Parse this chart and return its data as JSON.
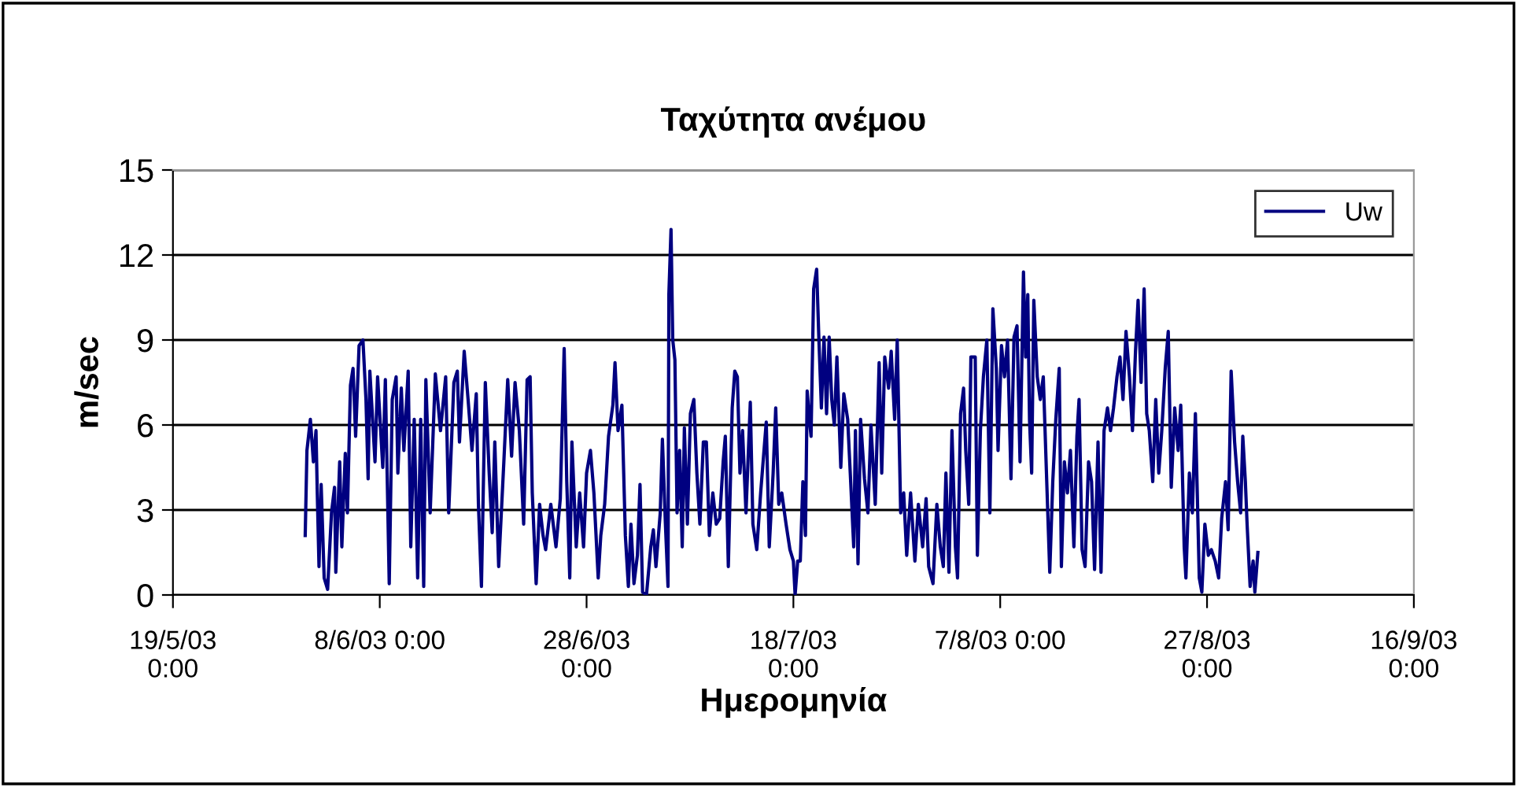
{
  "chart_data": {
    "type": "line",
    "title": "Ταχύτητα ανέμου",
    "xlabel": "Ημερομηνία",
    "ylabel": "m/sec",
    "xlim": [
      "2003-05-19",
      "2003-09-16"
    ],
    "xticks": [
      {
        "value": "2003-05-19",
        "label": "19/5/03\n0:00"
      },
      {
        "value": "2003-06-08",
        "label": "8/6/03 0:00"
      },
      {
        "value": "2003-06-28",
        "label": "28/6/03\n0:00"
      },
      {
        "value": "2003-07-18",
        "label": "18/7/03\n0:00"
      },
      {
        "value": "2003-08-07",
        "label": "7/8/03 0:00"
      },
      {
        "value": "2003-08-27",
        "label": "27/8/03\n0:00"
      },
      {
        "value": "2003-09-16",
        "label": "16/9/03\n0:00"
      }
    ],
    "ylim": [
      0,
      15
    ],
    "yticks": [
      0,
      3,
      6,
      9,
      12,
      15
    ],
    "grid": "y",
    "legend": "top right",
    "marker": "none",
    "line_style": "solid",
    "series": [
      {
        "name": "Uw",
        "color": "#000080",
        "x": [
          "2003-05-31T19:00",
          "2003-05-31T23:00",
          "2003-06-01T07:00",
          "2003-06-01T14:00",
          "2003-06-01T20:00",
          "2003-06-01T23:00",
          "2003-06-02T03:00",
          "2003-06-02T08:00",
          "2003-06-02T15:00",
          "2003-06-02T23:00",
          "2003-06-03T08:00",
          "2003-06-03T15:00",
          "2003-06-03T18:00",
          "2003-06-04T03:00",
          "2003-06-04T08:00",
          "2003-06-04T16:00",
          "2003-06-04T21:00",
          "2003-06-05T04:00",
          "2003-06-05T10:00",
          "2003-06-05T16:00",
          "2003-06-06T00:00",
          "2003-06-06T09:00",
          "2003-06-06T16:00",
          "2003-06-06T21:00",
          "2003-06-07T01:00",
          "2003-06-07T13:00",
          "2003-06-07T19:00",
          "2003-06-08T07:00",
          "2003-06-08T13:00",
          "2003-06-08T22:00",
          "2003-06-09T05:00",
          "2003-06-09T14:00",
          "2003-06-09T18:00",
          "2003-06-10T02:00",
          "2003-06-10T08:00",
          "2003-06-10T18:00",
          "2003-06-11T00:00",
          "2003-06-11T08:00",
          "2003-06-11T16:00",
          "2003-06-11T23:00",
          "2003-06-12T06:00",
          "2003-06-12T11:00",
          "2003-06-12T21:00",
          "2003-06-13T09:00",
          "2003-06-13T21:00",
          "2003-06-14T09:00",
          "2003-06-14T16:00",
          "2003-06-15T04:00",
          "2003-06-15T12:00",
          "2003-06-15T17:00",
          "2003-06-16T04:00",
          "2003-06-16T13:00",
          "2003-06-16T22:00",
          "2003-06-17T08:00",
          "2003-06-17T13:00",
          "2003-06-17T20:00",
          "2003-06-18T05:00",
          "2003-06-18T14:00",
          "2003-06-18T21:00",
          "2003-06-19T03:00",
          "2003-06-19T12:00",
          "2003-06-20T00:00",
          "2003-06-20T09:00",
          "2003-06-20T18:00",
          "2003-06-21T02:00",
          "2003-06-21T12:00",
          "2003-06-21T22:00",
          "2003-06-22T06:00",
          "2003-06-22T13:00",
          "2003-06-22T18:00",
          "2003-06-23T03:00",
          "2003-06-23T11:00",
          "2003-06-23T19:00",
          "2003-06-24T01:00",
          "2003-06-24T13:00",
          "2003-06-25T01:00",
          "2003-06-25T11:00",
          "2003-06-25T20:00",
          "2003-06-26T02:00",
          "2003-06-26T09:00",
          "2003-06-26T14:00",
          "2003-06-27T00:00",
          "2003-06-27T08:00",
          "2003-06-27T17:00",
          "2003-06-28T00:00",
          "2003-06-28T09:00",
          "2003-06-28T17:00",
          "2003-06-29T03:00",
          "2003-06-29T09:00",
          "2003-06-29T18:00",
          "2003-06-30T03:00",
          "2003-06-30T13:00",
          "2003-06-30T18:00",
          "2003-07-01T01:00",
          "2003-07-01T10:00",
          "2003-07-01T18:00",
          "2003-07-02T01:00",
          "2003-07-02T07:00",
          "2003-07-02T14:00",
          "2003-07-02T22:00",
          "2003-07-03T04:00",
          "2003-07-03T10:00",
          "2003-07-03T19:00",
          "2003-07-04T05:00",
          "2003-07-04T11:00",
          "2003-07-04T17:00",
          "2003-07-05T03:00",
          "2003-07-05T08:00",
          "2003-07-05T15:00",
          "2003-07-05T21:00",
          "2003-07-05T23:00",
          "2003-07-06T04:00",
          "2003-07-06T08:00",
          "2003-07-06T13:00",
          "2003-07-06T18:00",
          "2003-07-07T00:00",
          "2003-07-07T06:00",
          "2003-07-07T11:00",
          "2003-07-07T18:00",
          "2003-07-08T01:00",
          "2003-07-08T09:00",
          "2003-07-08T16:00",
          "2003-07-08T23:00",
          "2003-07-09T07:00",
          "2003-07-09T14:00",
          "2003-07-09T21:00",
          "2003-07-10T05:00",
          "2003-07-10T13:00",
          "2003-07-10T21:00",
          "2003-07-11T05:00",
          "2003-07-11T10:00",
          "2003-07-11T17:00",
          "2003-07-12T02:00",
          "2003-07-12T08:00",
          "2003-07-12T14:00",
          "2003-07-12T20:00",
          "2003-07-13T02:00",
          "2003-07-13T10:00",
          "2003-07-13T20:00",
          "2003-07-14T02:00",
          "2003-07-14T11:00",
          "2003-07-14T20:00",
          "2003-07-15T09:00",
          "2003-07-15T16:00",
          "2003-07-16T01:00",
          "2003-07-16T07:00",
          "2003-07-16T14:00",
          "2003-07-16T21:00",
          "2003-07-17T07:00",
          "2003-07-17T16:00",
          "2003-07-18T00:00",
          "2003-07-18T04:00",
          "2003-07-18T10:00",
          "2003-07-18T16:00",
          "2003-07-18T22:00",
          "2003-07-19T04:00",
          "2003-07-19T08:00",
          "2003-07-19T13:00",
          "2003-07-19T17:00",
          "2003-07-19T23:00",
          "2003-07-20T06:00",
          "2003-07-20T11:00",
          "2003-07-20T17:00",
          "2003-07-20T23:00",
          "2003-07-21T05:00",
          "2003-07-21T11:00",
          "2003-07-21T17:00",
          "2003-07-21T23:00",
          "2003-07-22T05:00",
          "2003-07-22T14:00",
          "2003-07-22T21:00",
          "2003-07-23T06:00",
          "2003-07-23T12:00",
          "2003-07-23T20:00",
          "2003-07-24T00:00",
          "2003-07-24T06:00",
          "2003-07-24T12:00",
          "2003-07-24T21:00",
          "2003-07-25T05:00",
          "2003-07-25T12:00",
          "2003-07-25T22:00",
          "2003-07-26T07:00",
          "2003-07-26T13:00",
          "2003-07-26T20:00",
          "2003-07-27T05:00",
          "2003-07-27T11:00",
          "2003-07-27T19:00",
          "2003-07-28T01:00",
          "2003-07-28T09:00",
          "2003-07-28T16:00",
          "2003-07-28T23:00",
          "2003-07-29T08:00",
          "2003-07-29T18:00",
          "2003-07-30T02:00",
          "2003-07-30T12:00",
          "2003-07-30T20:00",
          "2003-07-31T02:00",
          "2003-07-31T12:00",
          "2003-07-31T21:00",
          "2003-08-01T05:00",
          "2003-08-01T12:00",
          "2003-08-01T18:00",
          "2003-08-02T01:00",
          "2003-08-02T08:00",
          "2003-08-02T16:00",
          "2003-08-02T21:00",
          "2003-08-03T04:00",
          "2003-08-03T11:00",
          "2003-08-03T16:00",
          "2003-08-03T23:00",
          "2003-08-04T04:00",
          "2003-08-04T14:00",
          "2003-08-04T19:00",
          "2003-08-05T02:00",
          "2003-08-05T09:00",
          "2003-08-05T17:00",
          "2003-08-06T00:00",
          "2003-08-06T07:00",
          "2003-08-06T15:00",
          "2003-08-06T19:00",
          "2003-08-07T03:00",
          "2003-08-07T10:00",
          "2003-08-07T17:00",
          "2003-08-08T01:00",
          "2003-08-08T08:00",
          "2003-08-08T15:00",
          "2003-08-08T22:00",
          "2003-08-09T06:00",
          "2003-08-09T11:00",
          "2003-08-09T16:00",
          "2003-08-09T20:00",
          "2003-08-10T01:00",
          "2003-08-10T06:00",
          "2003-08-10T14:00",
          "2003-08-10T21:00",
          "2003-08-11T04:00",
          "2003-08-11T12:00",
          "2003-08-11T19:00",
          "2003-08-12T02:00",
          "2003-08-12T09:00",
          "2003-08-12T17:00",
          "2003-08-12T22:00",
          "2003-08-13T05:00",
          "2003-08-13T12:00",
          "2003-08-13T19:00",
          "2003-08-14T03:00",
          "2003-08-14T10:00",
          "2003-08-14T15:00",
          "2003-08-14T22:00",
          "2003-08-15T05:00",
          "2003-08-15T13:00",
          "2003-08-15T20:00",
          "2003-08-16T03:00",
          "2003-08-16T11:00",
          "2003-08-16T18:00",
          "2003-08-17T01:00",
          "2003-08-17T09:00",
          "2003-08-17T16:00",
          "2003-08-17T23:00",
          "2003-08-18T07:00",
          "2003-08-18T14:00",
          "2003-08-18T21:00",
          "2003-08-19T04:00",
          "2003-08-19T12:00",
          "2003-08-19T19:00",
          "2003-08-20T02:00",
          "2003-08-20T08:00",
          "2003-08-20T15:00",
          "2003-08-20T22:00",
          "2003-08-21T04:00",
          "2003-08-21T10:00",
          "2003-08-21T18:00",
          "2003-08-22T01:00",
          "2003-08-22T08:00",
          "2003-08-22T15:00",
          "2003-08-22T23:00",
          "2003-08-23T06:00",
          "2003-08-23T13:00",
          "2003-08-23T21:00",
          "2003-08-24T05:00",
          "2003-08-24T11:00",
          "2003-08-24T19:00",
          "2003-08-24T23:00",
          "2003-08-25T07:00",
          "2003-08-25T14:00",
          "2003-08-25T21:00",
          "2003-08-26T06:00",
          "2003-08-26T12:00",
          "2003-08-26T19:00",
          "2003-08-27T03:00",
          "2003-08-27T10:00",
          "2003-08-27T19:00",
          "2003-08-28T03:00",
          "2003-08-28T10:00",
          "2003-08-28T19:00",
          "2003-08-29T01:00",
          "2003-08-29T08:00",
          "2003-08-29T16:00",
          "2003-08-29T23:00",
          "2003-08-30T06:00",
          "2003-08-30T11:00",
          "2003-08-30T17:00",
          "2003-08-30T21:00",
          "2003-08-31T04:00",
          "2003-08-31T11:00",
          "2003-08-31T15:00",
          "2003-08-31T22:00"
        ],
        "values": [
          2.1,
          5.1,
          6.2,
          4.7,
          5.8,
          3.6,
          1.0,
          3.9,
          0.6,
          0.2,
          2.9,
          3.8,
          0.8,
          4.7,
          1.7,
          5.0,
          2.9,
          7.4,
          8.0,
          5.6,
          8.8,
          9.0,
          6.9,
          4.1,
          7.9,
          4.7,
          7.7,
          4.5,
          7.6,
          0.4,
          6.9,
          7.7,
          4.3,
          7.3,
          5.1,
          7.9,
          1.7,
          6.2,
          0.6,
          6.2,
          0.3,
          7.6,
          2.9,
          7.8,
          5.8,
          7.7,
          2.9,
          7.5,
          7.9,
          5.4,
          8.6,
          6.9,
          5.1,
          7.1,
          3.2,
          0.3,
          7.5,
          4.3,
          2.2,
          5.4,
          1.0,
          4.7,
          7.6,
          4.9,
          7.5,
          5.8,
          2.5,
          7.6,
          7.7,
          3.6,
          0.4,
          3.2,
          2.1,
          1.6,
          3.2,
          1.7,
          3.4,
          8.7,
          4.0,
          0.6,
          5.4,
          1.7,
          3.6,
          1.7,
          4.3,
          5.1,
          3.6,
          0.6,
          2.1,
          3.2,
          5.6,
          6.7,
          8.2,
          5.8,
          6.7,
          2.1,
          0.3,
          2.5,
          0.4,
          1.4,
          3.9,
          0.1,
          0,
          1.7,
          2.3,
          1.0,
          2.9,
          5.5,
          2.5,
          0.3,
          10.6,
          12.9,
          9.0,
          8.3,
          2.9,
          5.1,
          1.7,
          5.9,
          2.5,
          6.4,
          6.9,
          4.3,
          2.5,
          5.4,
          5.4,
          2.1,
          3.6,
          2.5,
          2.7,
          4.7,
          5.6,
          1.0,
          6.6,
          7.9,
          7.7,
          4.3,
          5.8,
          2.9,
          6.8,
          2.5,
          1.6,
          3.6,
          6.1,
          1.7,
          4.3,
          6.6,
          3.2,
          3.6,
          2.5,
          1.6,
          1.2,
          0,
          1.2,
          1.2,
          4.0,
          2.1,
          7.2,
          6.2,
          5.6,
          10.8,
          11.5,
          9.1,
          6.6,
          9.1,
          6.4,
          9.1,
          6.9,
          6.0,
          8.4,
          4.5,
          7.1,
          6.2,
          4.3,
          1.7,
          5.8,
          1.1,
          6.2,
          4.1,
          2.9,
          6.0,
          3.2,
          8.2,
          4.3,
          8.4,
          7.3,
          8.6,
          6.2,
          9.0,
          2.9,
          3.6,
          1.4,
          3.6,
          1.2,
          3.2,
          1.7,
          3.4,
          1.0,
          0.4,
          3.2,
          1.7,
          1.0,
          4.3,
          0.8,
          5.8,
          1.7,
          0.6,
          6.4,
          7.3,
          5.1,
          3.2,
          8.4,
          8.4,
          1.4,
          5.8,
          7.7,
          9.0,
          2.9,
          10.1,
          8.0,
          5.1,
          8.8,
          7.7,
          9.0,
          4.1,
          9.1,
          9.5,
          4.7,
          11.4,
          8.4,
          10.6,
          6.2,
          4.3,
          10.4,
          7.7,
          6.9,
          7.7,
          4.0,
          0.8,
          4.0,
          6.2,
          8.0,
          1.0,
          4.7,
          3.6,
          5.1,
          1.7,
          5.6,
          6.9,
          1.6,
          1.0,
          4.7,
          4.0,
          0.9,
          5.4,
          0.8,
          5.8,
          6.6,
          5.8,
          6.6,
          7.7,
          8.4,
          6.9,
          9.3,
          7.7,
          5.8,
          8.6,
          10.4,
          7.5,
          10.8,
          6.4,
          5.8,
          4.0,
          6.9,
          4.3,
          5.8,
          8.0,
          9.3,
          3.8,
          6.6,
          5.1,
          6.7,
          1.7,
          0.6,
          4.3,
          2.9,
          6.4,
          0.6,
          0.1,
          2.5,
          1.4,
          1.6,
          1.2,
          0.6,
          2.7,
          4.0,
          2.3,
          7.9,
          5.4,
          4.0,
          2.9,
          5.6,
          4.0,
          2.5,
          0.3,
          1.2,
          0.1,
          1.5
        ]
      }
    ]
  }
}
